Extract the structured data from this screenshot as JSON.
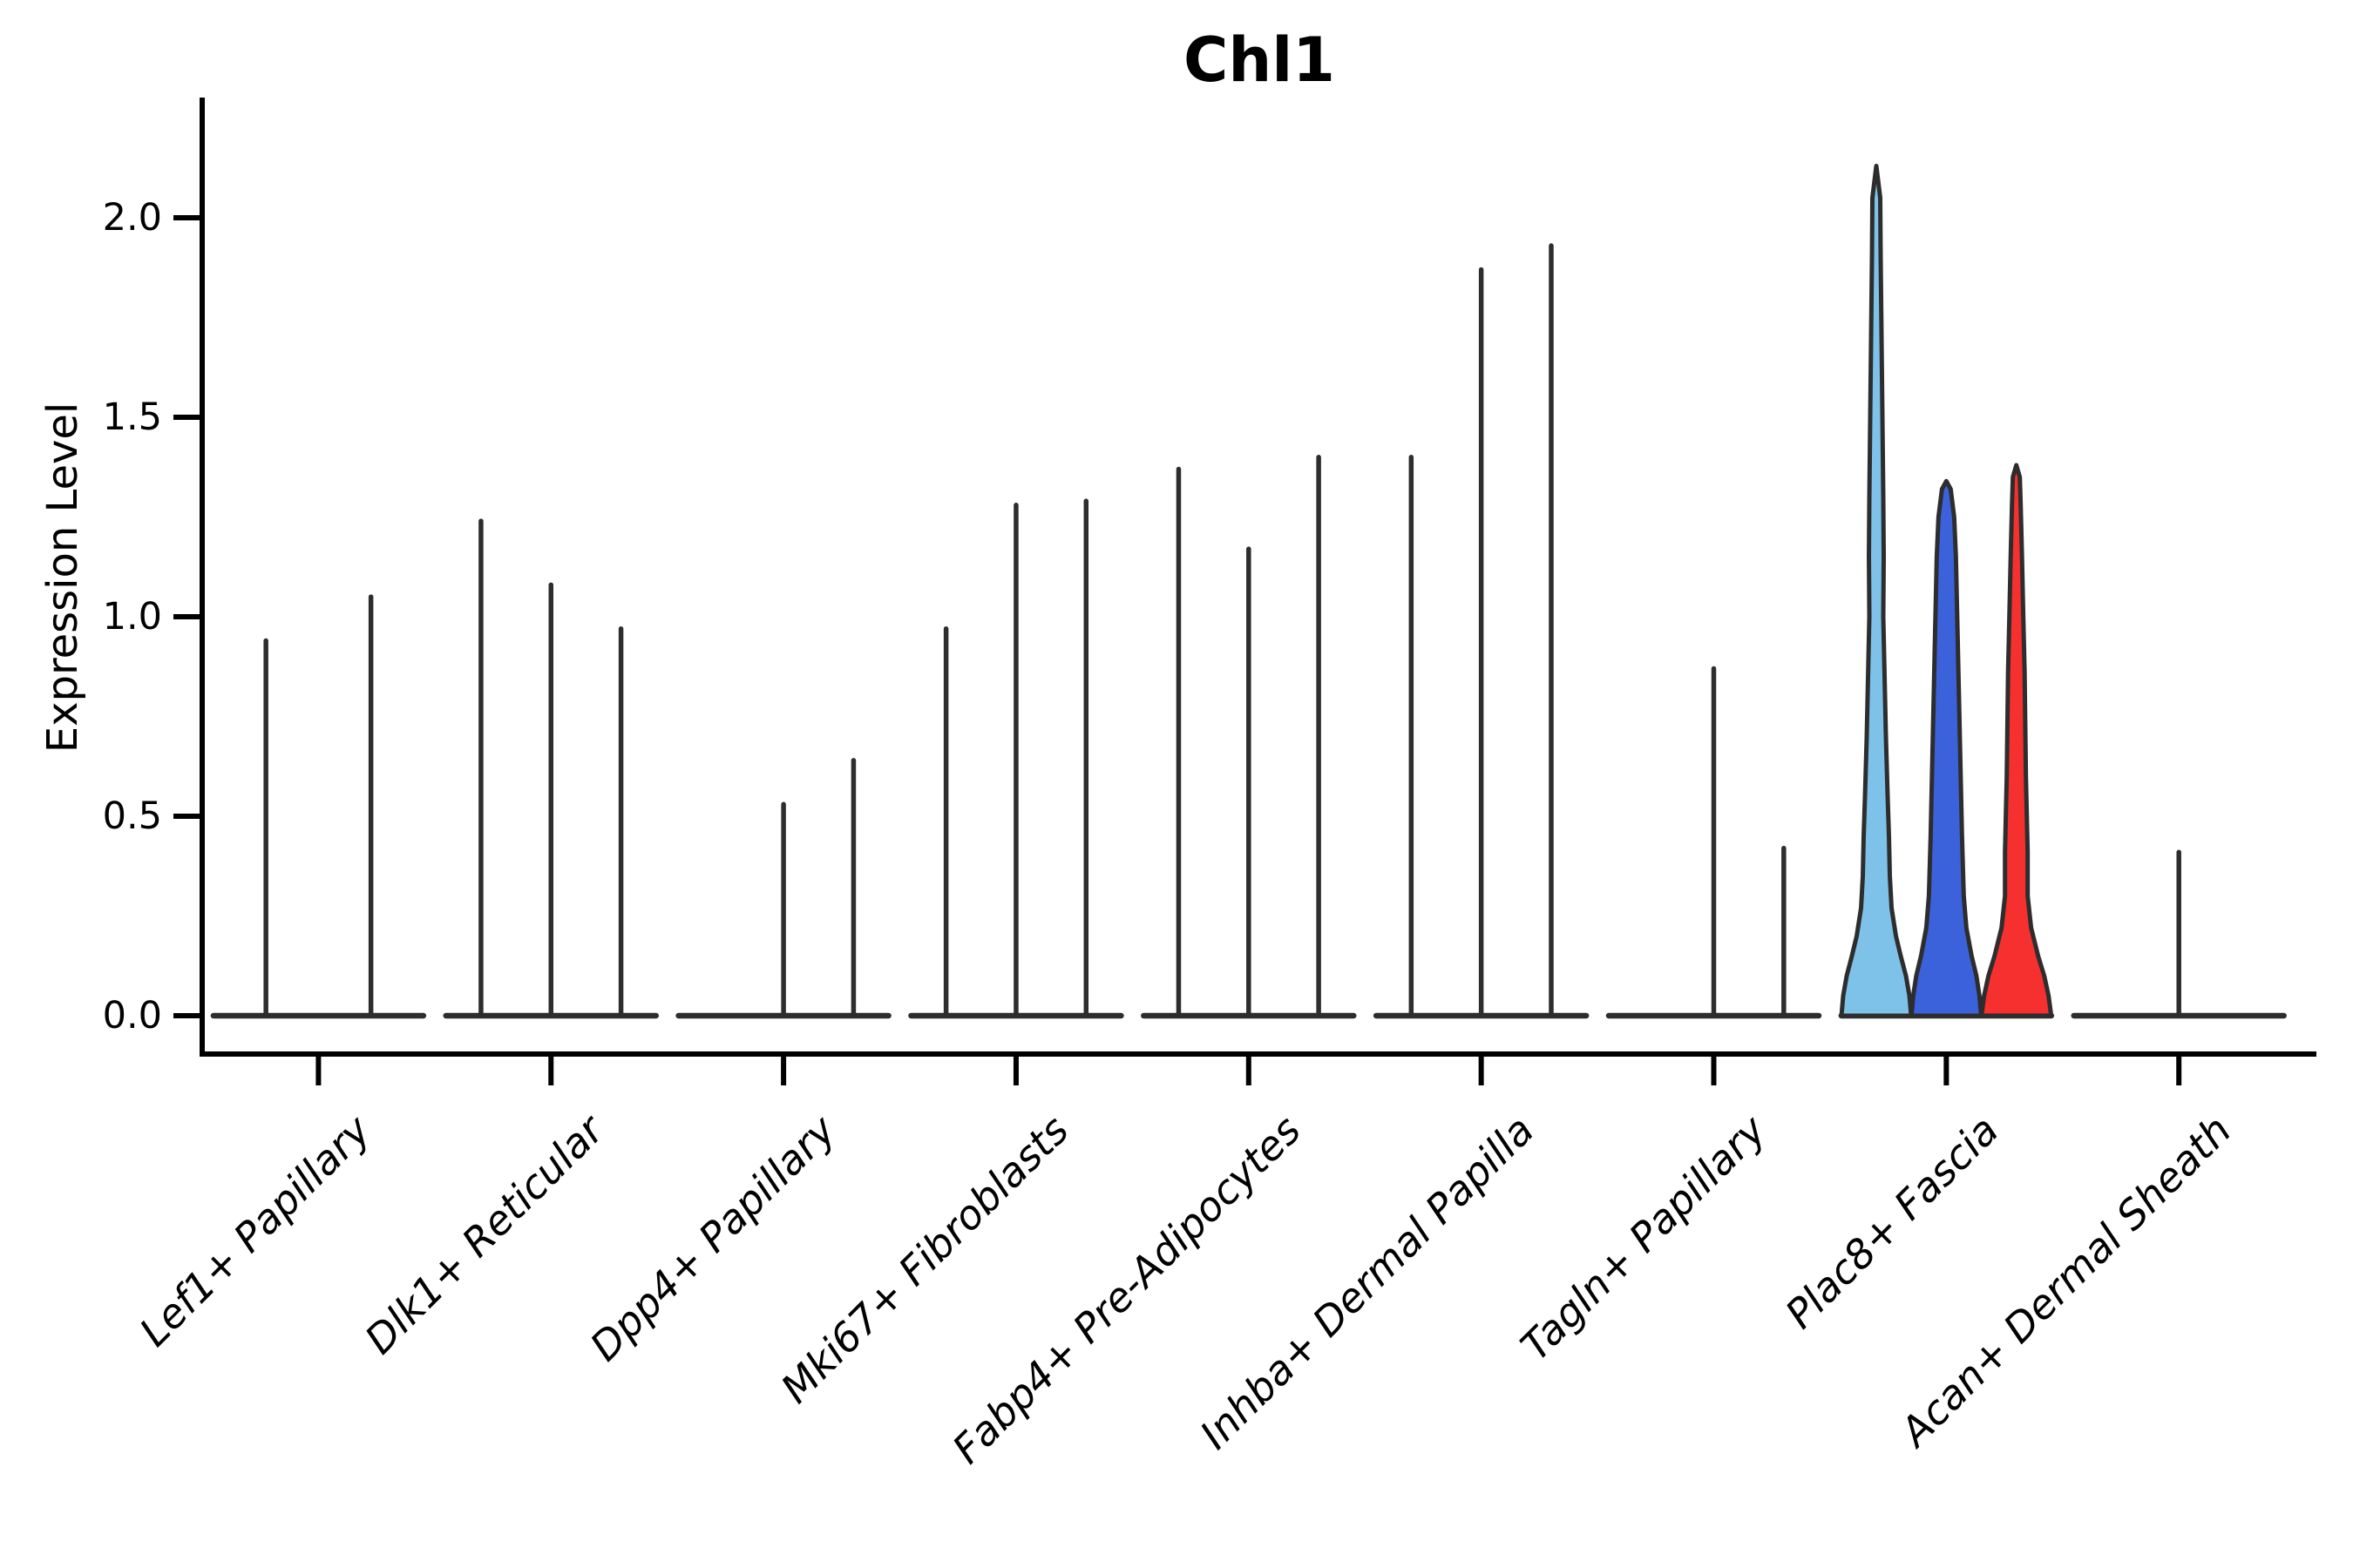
{
  "title": "Chl1",
  "y_axis": {
    "label": "Expression Level",
    "tick_labels": [
      "2.0",
      "1.5",
      "1.0",
      "0.5",
      "0.0"
    ],
    "tick_values": [
      2.0,
      1.5,
      1.0,
      0.5,
      0.0
    ]
  },
  "chart_data": {
    "type": "violin",
    "title": "Chl1",
    "xlabel": "",
    "ylabel": "Expression Level",
    "ylim": [
      0,
      2.3
    ],
    "yticks": [
      0.0,
      0.5,
      1.0,
      1.5,
      2.0
    ],
    "grid": false,
    "legend_position": "none",
    "categories": [
      "Lef1+ Papillary",
      "Dlk1+ Reticular",
      "Dpp4+ Papillary",
      "Mki67+ Fibroblasts",
      "Fabp4+ Pre-Adipocytes",
      "Inhba+ Dermal Papilla",
      "Tagln+ Papillary",
      "Plac8+ Fascia",
      "Acan+ Dermal Sheath"
    ],
    "groups": [
      {
        "category": "Lef1+ Papillary",
        "n_slots": 2,
        "violins": [
          {
            "slot": 0,
            "max": 0.94
          },
          {
            "slot": 1,
            "max": 1.05
          }
        ]
      },
      {
        "category": "Dlk1+ Reticular",
        "n_slots": 3,
        "violins": [
          {
            "slot": 0,
            "max": 1.24
          },
          {
            "slot": 1,
            "max": 1.08
          },
          {
            "slot": 2,
            "max": 0.97
          }
        ]
      },
      {
        "category": "Dpp4+ Papillary",
        "n_slots": 3,
        "violins": [
          {
            "slot": 0,
            "max": 0
          },
          {
            "slot": 1,
            "max": 0.53
          },
          {
            "slot": 2,
            "max": 0.64
          }
        ]
      },
      {
        "category": "Mki67+ Fibroblasts",
        "n_slots": 3,
        "violins": [
          {
            "slot": 0,
            "max": 0.97
          },
          {
            "slot": 1,
            "max": 1.28
          },
          {
            "slot": 2,
            "max": 1.29
          }
        ]
      },
      {
        "category": "Fabp4+ Pre-Adipocytes",
        "n_slots": 3,
        "violins": [
          {
            "slot": 0,
            "max": 1.37
          },
          {
            "slot": 1,
            "max": 1.17
          },
          {
            "slot": 2,
            "max": 1.4
          }
        ]
      },
      {
        "category": "Inhba+ Dermal Papilla",
        "n_slots": 3,
        "violins": [
          {
            "slot": 0,
            "max": 1.4
          },
          {
            "slot": 1,
            "max": 1.87
          },
          {
            "slot": 2,
            "max": 1.93
          }
        ]
      },
      {
        "category": "Tagln+ Papillary",
        "n_slots": 3,
        "violins": [
          {
            "slot": 0,
            "max": 0
          },
          {
            "slot": 1,
            "max": 0.87
          },
          {
            "slot": 2,
            "max": 0.42
          }
        ]
      },
      {
        "category": "Plac8+ Fascia",
        "n_slots": 3,
        "violins": [
          {
            "slot": 0,
            "max": 2.13,
            "fill": "#7EC2E9",
            "profile": [
              [
                0,
                40
              ],
              [
                0.05,
                38
              ],
              [
                0.1,
                34
              ],
              [
                0.15,
                28
              ],
              [
                0.2,
                22.5
              ],
              [
                0.27,
                17.5
              ],
              [
                0.35,
                15.5
              ],
              [
                0.45,
                14.5
              ],
              [
                0.55,
                13
              ],
              [
                0.7,
                11
              ],
              [
                0.85,
                9.5
              ],
              [
                1.0,
                8
              ],
              [
                1.15,
                8.5
              ],
              [
                1.3,
                8
              ],
              [
                1.5,
                7
              ],
              [
                1.7,
                6
              ],
              [
                1.9,
                5
              ],
              [
                2.05,
                4.5
              ],
              [
                2.13,
                0
              ]
            ]
          },
          {
            "slot": 1,
            "max": 1.34,
            "fill": "#3B62DB",
            "profile": [
              [
                0,
                40
              ],
              [
                0.05,
                38
              ],
              [
                0.1,
                34.5
              ],
              [
                0.15,
                29
              ],
              [
                0.22,
                23
              ],
              [
                0.3,
                20
              ],
              [
                0.45,
                18
              ],
              [
                0.6,
                16.5
              ],
              [
                0.8,
                14.5
              ],
              [
                1.0,
                12.5
              ],
              [
                1.15,
                11
              ],
              [
                1.25,
                9
              ],
              [
                1.32,
                5
              ],
              [
                1.34,
                0
              ]
            ]
          },
          {
            "slot": 2,
            "max": 1.38,
            "fill": "#F5302E",
            "profile": [
              [
                0,
                40
              ],
              [
                0.05,
                37
              ],
              [
                0.1,
                32
              ],
              [
                0.15,
                25
              ],
              [
                0.22,
                17
              ],
              [
                0.3,
                13
              ],
              [
                0.41,
                13
              ],
              [
                0.6,
                11
              ],
              [
                0.86,
                9.5
              ],
              [
                1.0,
                8
              ],
              [
                1.15,
                6.5
              ],
              [
                1.28,
                5
              ],
              [
                1.35,
                4
              ],
              [
                1.38,
                0
              ]
            ]
          }
        ]
      },
      {
        "category": "Acan+ Dermal Sheath",
        "n_slots": 3,
        "violins": [
          {
            "slot": 0,
            "max": 0
          },
          {
            "slot": 1,
            "max": 0.41
          },
          {
            "slot": 2,
            "max": 0
          }
        ]
      }
    ],
    "colors": {
      "stroke": "#2d2d2d",
      "axis": "#000000",
      "highlight_fills": [
        "#7EC2E9",
        "#3B62DB",
        "#F5302E"
      ]
    }
  }
}
